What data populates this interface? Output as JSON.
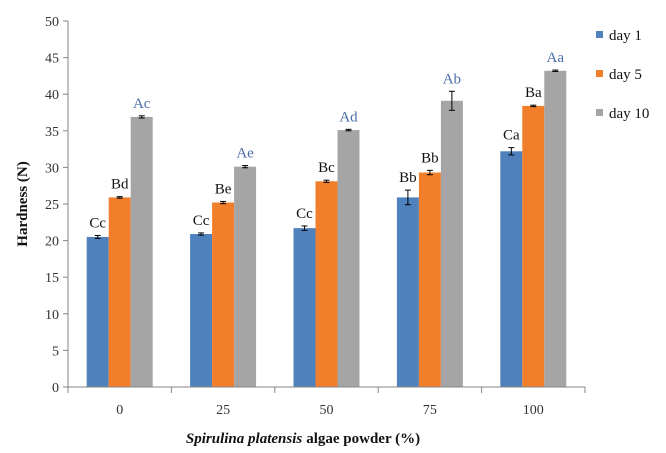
{
  "chart_data": {
    "type": "bar",
    "categories": [
      "0",
      "25",
      "50",
      "75",
      "100"
    ],
    "ylabel": "Hardness (N)",
    "xlabel": {
      "italic": "Spirulina platensis",
      "rest": "algae powder (%)"
    },
    "ylim": [
      0,
      50
    ],
    "yticks": [
      0,
      5,
      10,
      15,
      20,
      25,
      30,
      35,
      40,
      45,
      50
    ],
    "grid": false,
    "legend_position": "right",
    "series": [
      {
        "name": "day 1",
        "color": "#4f81bd",
        "values": [
          20.5,
          20.9,
          21.7,
          25.9,
          32.2
        ],
        "errors": [
          0.2,
          0.15,
          0.3,
          1.0,
          0.5
        ],
        "labels": [
          "Cc",
          "Cc",
          "Cc",
          "Bb",
          "Ca"
        ],
        "label_color": "#111111"
      },
      {
        "name": "day 5",
        "color": "#f07e2a",
        "values": [
          25.9,
          25.2,
          28.1,
          29.3,
          38.4
        ],
        "errors": [
          0.1,
          0.15,
          0.15,
          0.3,
          0.1
        ],
        "labels": [
          "Bd",
          "Be",
          "Bc",
          "Bb",
          "Ba"
        ],
        "label_color": "#111111"
      },
      {
        "name": "day 10",
        "color": "#a5a5a5",
        "values": [
          36.9,
          30.1,
          35.1,
          39.1,
          43.2
        ],
        "errors": [
          0.15,
          0.15,
          0.1,
          1.3,
          0.1
        ],
        "labels": [
          "Ac",
          "Ae",
          "Ad",
          "Ab",
          "Aa"
        ],
        "label_color": "#4a6ea8"
      }
    ]
  }
}
